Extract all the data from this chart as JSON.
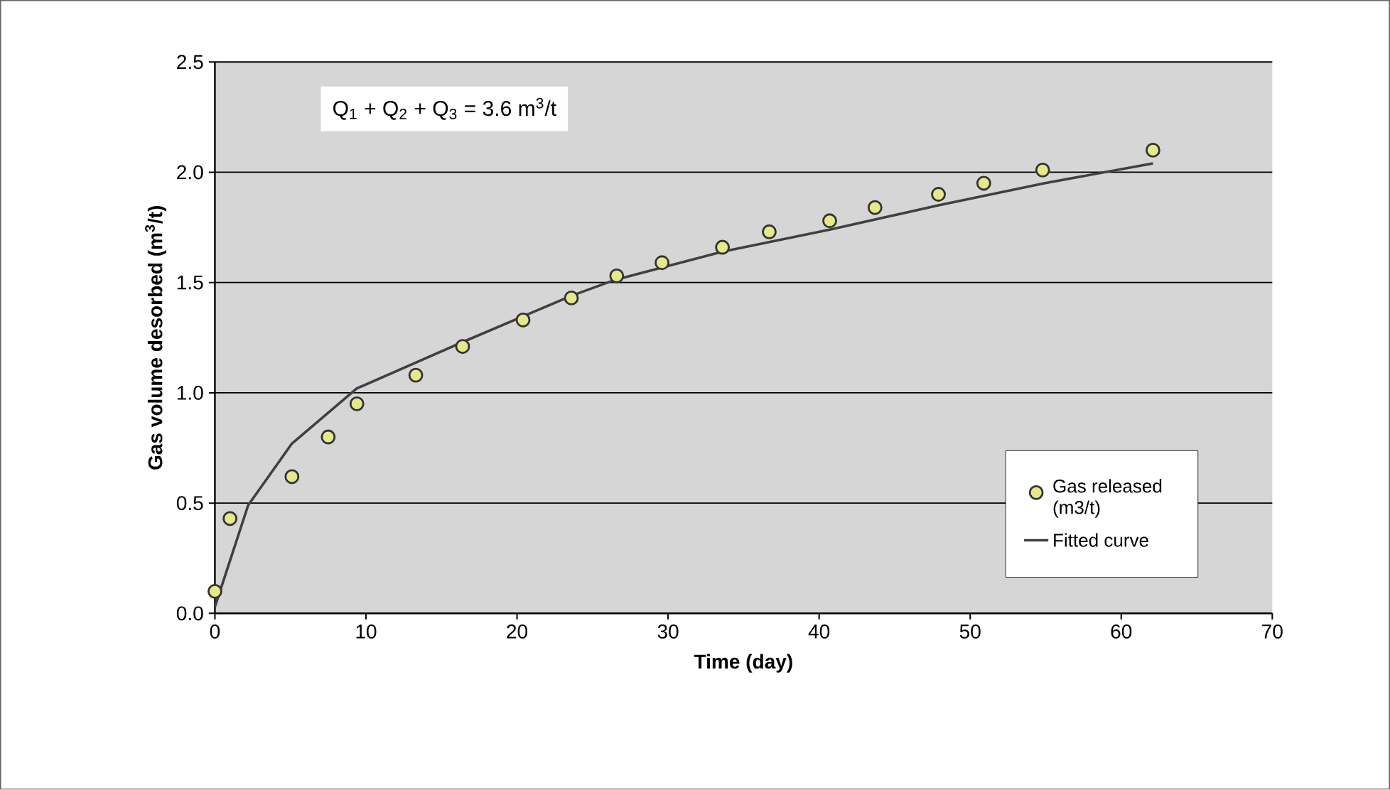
{
  "chart_data": {
    "type": "scatter",
    "xlabel": "Time (day)",
    "ylabel": "Gas volume desorbed (m$^{3}$/t)",
    "annotations": [
      "Q$_{1}$ + Q$_{2}$ + Q$_{3}$ = 3.6 m$^{3}$/t"
    ],
    "xlim": [
      0,
      70
    ],
    "xticks": [
      0,
      10,
      20,
      30,
      40,
      50,
      60,
      70
    ],
    "ylim": [
      0,
      2.5
    ],
    "yticks": [
      {
        "value": 0,
        "label": "0.0"
      },
      {
        "value": 0.5,
        "label": "0.5"
      },
      {
        "value": 1,
        "label": "1.0"
      },
      {
        "value": 1.5,
        "label": "1.5"
      },
      {
        "value": 2,
        "label": "2.0"
      },
      {
        "value": 2.5,
        "label": "2.5"
      }
    ],
    "grid": "y",
    "legend": "right",
    "marker": "circle",
    "series": [
      {
        "name": "Gas released (m3/t)",
        "color": "#e6e98a",
        "x": [
          0,
          1.0,
          5.1,
          7.5,
          9.4,
          13.3,
          16.4,
          20.4,
          23.6,
          26.6,
          29.6,
          33.6,
          36.7,
          40.7,
          43.7,
          47.9,
          50.9,
          54.8,
          62.1
        ],
        "values": [
          0.1,
          0.43,
          0.62,
          0.8,
          0.95,
          1.08,
          1.21,
          1.33,
          1.43,
          1.53,
          1.59,
          1.66,
          1.73,
          1.78,
          1.84,
          1.9,
          1.95,
          2.01,
          2.1
        ]
      },
      {
        "name": "Fitted curve",
        "type": "line",
        "marker": "none",
        "color": "#404040",
        "x": [
          0,
          2.2,
          5.1,
          9.4,
          16.4,
          23.6,
          26.4,
          33.6,
          40.7,
          47.9,
          54.9,
          62.1
        ],
        "values": [
          0.03,
          0.49,
          0.77,
          1.02,
          1.23,
          1.44,
          1.51,
          1.64,
          1.74,
          1.85,
          1.95,
          2.04
        ]
      }
    ]
  }
}
